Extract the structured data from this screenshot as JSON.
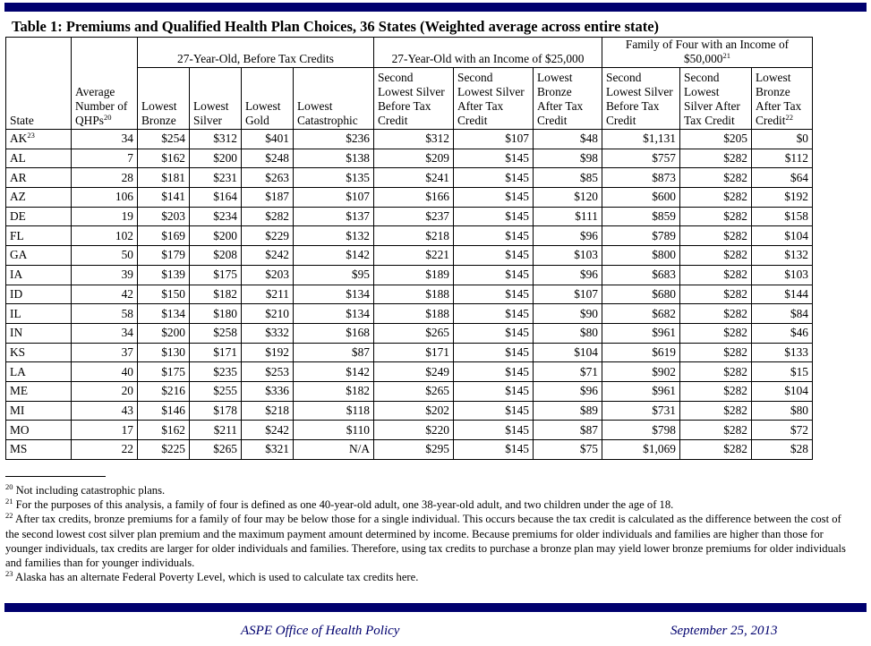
{
  "title": "Table 1: Premiums and Qualified Health Plan Choices, 36 States (Weighted average across entire state)",
  "table": {
    "groups": {
      "before": "27-Year-Old, Before Tax Credits",
      "income25": "27-Year-Old with an Income of $25,000",
      "family": "Family of Four with an Income of $50,000",
      "family_sup": "21"
    },
    "headers": {
      "state": "State",
      "qhps": "Average Number of QHPs",
      "qhps_sup": "20",
      "c1": "Lowest Bronze",
      "c2": "Lowest Silver",
      "c3": "Lowest Gold",
      "c4": "Lowest Catastrophic",
      "c5": "Second Lowest Silver Before Tax Credit",
      "c6": "Second Lowest Silver After Tax Credit",
      "c7": "Lowest Bronze After Tax Credit",
      "c8": "Second Lowest Silver Before Tax Credit",
      "c9": "Second Lowest Silver After Tax Credit",
      "c10": "Lowest Bronze After Tax Credit",
      "c10_sup": "22"
    },
    "rows": [
      {
        "state": "AK",
        "sup": "23",
        "v": [
          "34",
          "$254",
          "$312",
          "$401",
          "$236",
          "$312",
          "$107",
          "$48",
          "$1,131",
          "$205",
          "$0"
        ]
      },
      {
        "state": "AL",
        "v": [
          "7",
          "$162",
          "$200",
          "$248",
          "$138",
          "$209",
          "$145",
          "$98",
          "$757",
          "$282",
          "$112"
        ]
      },
      {
        "state": "AR",
        "v": [
          "28",
          "$181",
          "$231",
          "$263",
          "$135",
          "$241",
          "$145",
          "$85",
          "$873",
          "$282",
          "$64"
        ]
      },
      {
        "state": "AZ",
        "v": [
          "106",
          "$141",
          "$164",
          "$187",
          "$107",
          "$166",
          "$145",
          "$120",
          "$600",
          "$282",
          "$192"
        ]
      },
      {
        "state": "DE",
        "v": [
          "19",
          "$203",
          "$234",
          "$282",
          "$137",
          "$237",
          "$145",
          "$111",
          "$859",
          "$282",
          "$158"
        ]
      },
      {
        "state": "FL",
        "v": [
          "102",
          "$169",
          "$200",
          "$229",
          "$132",
          "$218",
          "$145",
          "$96",
          "$789",
          "$282",
          "$104"
        ]
      },
      {
        "state": "GA",
        "v": [
          "50",
          "$179",
          "$208",
          "$242",
          "$142",
          "$221",
          "$145",
          "$103",
          "$800",
          "$282",
          "$132"
        ]
      },
      {
        "state": "IA",
        "v": [
          "39",
          "$139",
          "$175",
          "$203",
          "$95",
          "$189",
          "$145",
          "$96",
          "$683",
          "$282",
          "$103"
        ]
      },
      {
        "state": "ID",
        "v": [
          "42",
          "$150",
          "$182",
          "$211",
          "$134",
          "$188",
          "$145",
          "$107",
          "$680",
          "$282",
          "$144"
        ]
      },
      {
        "state": "IL",
        "v": [
          "58",
          "$134",
          "$180",
          "$210",
          "$134",
          "$188",
          "$145",
          "$90",
          "$682",
          "$282",
          "$84"
        ]
      },
      {
        "state": "IN",
        "v": [
          "34",
          "$200",
          "$258",
          "$332",
          "$168",
          "$265",
          "$145",
          "$80",
          "$961",
          "$282",
          "$46"
        ]
      },
      {
        "state": "KS",
        "v": [
          "37",
          "$130",
          "$171",
          "$192",
          "$87",
          "$171",
          "$145",
          "$104",
          "$619",
          "$282",
          "$133"
        ]
      },
      {
        "state": "LA",
        "v": [
          "40",
          "$175",
          "$235",
          "$253",
          "$142",
          "$249",
          "$145",
          "$71",
          "$902",
          "$282",
          "$15"
        ]
      },
      {
        "state": "ME",
        "v": [
          "20",
          "$216",
          "$255",
          "$336",
          "$182",
          "$265",
          "$145",
          "$96",
          "$961",
          "$282",
          "$104"
        ]
      },
      {
        "state": "MI",
        "v": [
          "43",
          "$146",
          "$178",
          "$218",
          "$118",
          "$202",
          "$145",
          "$89",
          "$731",
          "$282",
          "$80"
        ]
      },
      {
        "state": "MO",
        "v": [
          "17",
          "$162",
          "$211",
          "$242",
          "$110",
          "$220",
          "$145",
          "$87",
          "$798",
          "$282",
          "$72"
        ]
      },
      {
        "state": "MS",
        "v": [
          "22",
          "$225",
          "$265",
          "$321",
          "N/A",
          "$295",
          "$145",
          "$75",
          "$1,069",
          "$282",
          "$28"
        ]
      }
    ]
  },
  "footnotes": [
    {
      "num": "20",
      "text": "Not including catastrophic plans."
    },
    {
      "num": "21",
      "text": "For the purposes of this analysis, a family of four is defined as one 40-year-old adult, one 38-year-old adult, and two children under the age of 18."
    },
    {
      "num": "22",
      "text": "After tax credits, bronze premiums for a family of four may be below those for a single individual. This occurs because the tax credit is calculated as the difference between the cost of the second lowest cost silver plan premium and the maximum payment amount determined by income. Because premiums for older individuals and families are higher than those for younger individuals, tax credits are larger for older individuals and families. Therefore, using tax credits to purchase a bronze plan may yield lower bronze premiums for older individuals and families than for younger individuals."
    },
    {
      "num": "23",
      "text": "Alaska has an alternate Federal Poverty Level, which is used to calculate tax credits here."
    }
  ],
  "footer": {
    "office": "ASPE Office of Health Policy",
    "date": "September 25, 2013"
  },
  "colors": {
    "accent_bar": "#00006e",
    "footer_text": "#00006e"
  }
}
